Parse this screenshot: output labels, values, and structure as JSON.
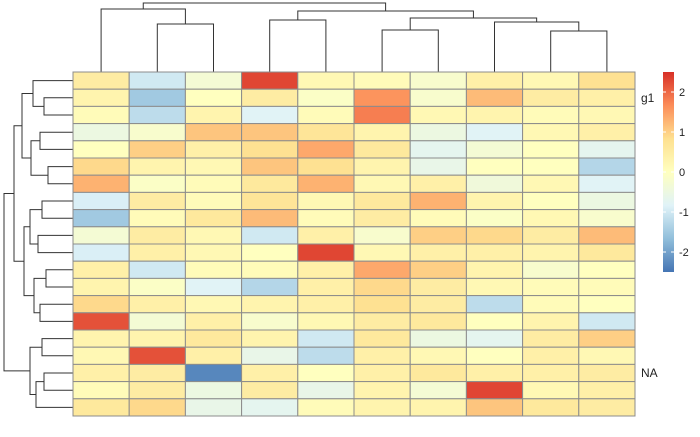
{
  "chart_data": {
    "type": "heatmap",
    "title": "",
    "n_rows": 20,
    "n_cols": 10,
    "row_labels": [
      "",
      "g1",
      "",
      "",
      "",
      "",
      "",
      "",
      "",
      "",
      "",
      "",
      "",
      "",
      "",
      "",
      "",
      "NA",
      "",
      ""
    ],
    "column_labels": [
      "",
      "",
      "",
      "",
      "",
      "",
      "",
      "",
      "",
      ""
    ],
    "values": [
      [
        0.5,
        -1.0,
        -0.3,
        2.3,
        0.2,
        0.1,
        -0.2,
        0.4,
        0.2,
        0.8
      ],
      [
        0.3,
        -1.5,
        0.0,
        0.5,
        -0.1,
        1.6,
        -0.2,
        1.2,
        0.5,
        0.4
      ],
      [
        0.1,
        -1.2,
        0.3,
        -0.8,
        0.1,
        1.8,
        0.2,
        0.3,
        0.1,
        0.2
      ],
      [
        -0.5,
        -0.2,
        1.1,
        1.1,
        0.7,
        0.3,
        -0.5,
        -0.8,
        0.2,
        0.4
      ],
      [
        0.0,
        1.0,
        0.4,
        0.8,
        1.4,
        0.6,
        -0.7,
        -0.3,
        0.0,
        -0.7
      ],
      [
        0.9,
        0.3,
        0.2,
        1.1,
        0.8,
        0.3,
        -0.6,
        0.0,
        0.0,
        -1.3
      ],
      [
        1.3,
        -0.1,
        0.1,
        0.6,
        1.3,
        0.2,
        0.4,
        -0.4,
        0.2,
        -0.8
      ],
      [
        -0.9,
        0.5,
        0.1,
        0.7,
        0.2,
        0.6,
        1.3,
        0.3,
        0.0,
        -0.5
      ],
      [
        -1.5,
        0.1,
        0.6,
        1.2,
        0.1,
        0.5,
        0.1,
        -0.1,
        0.2,
        -0.2
      ],
      [
        -0.3,
        0.5,
        0.2,
        -1.0,
        0.4,
        -0.2,
        1.0,
        0.9,
        0.5,
        1.2
      ],
      [
        -0.9,
        0.4,
        0.2,
        0.0,
        2.3,
        0.2,
        0.4,
        0.4,
        0.3,
        0.6
      ],
      [
        0.4,
        -1.0,
        0.1,
        0.1,
        0.4,
        1.4,
        1.0,
        0.3,
        -0.2,
        0.0
      ],
      [
        0.3,
        -0.1,
        -0.8,
        -1.3,
        0.4,
        0.9,
        0.5,
        0.2,
        0.1,
        0.1
      ],
      [
        0.9,
        0.4,
        0.2,
        0.3,
        0.4,
        0.8,
        0.5,
        -1.2,
        0.1,
        0.0
      ],
      [
        2.2,
        -0.3,
        0.4,
        -0.2,
        0.2,
        0.5,
        0.6,
        0.0,
        0.3,
        -1.0
      ],
      [
        0.3,
        0.3,
        0.6,
        0.3,
        -1.0,
        0.6,
        -0.5,
        -0.7,
        0.5,
        1.0
      ],
      [
        0.2,
        2.2,
        0.4,
        -0.6,
        -1.2,
        0.4,
        0.2,
        0.0,
        0.4,
        0.2
      ],
      [
        0.4,
        0.5,
        -2.3,
        0.4,
        0.0,
        0.4,
        0.6,
        0.4,
        0.4,
        0.5
      ],
      [
        0.1,
        0.5,
        -0.5,
        0.5,
        -0.6,
        0.3,
        -0.3,
        2.3,
        0.2,
        0.4
      ],
      [
        0.6,
        0.9,
        -0.6,
        -0.7,
        0.1,
        0.3,
        0.3,
        1.1,
        0.6,
        0.5
      ]
    ],
    "color_scale": {
      "min": -2.5,
      "max": 2.5,
      "stops": [
        "#4575b4",
        "#91bfdb",
        "#e0f3f8",
        "#ffffbf",
        "#fee090",
        "#fc8d59",
        "#d73027"
      ],
      "ticks": [
        2,
        1,
        0,
        -1,
        -2
      ],
      "tick_labels": [
        "2",
        "1",
        "0",
        "-1",
        "-2"
      ]
    },
    "legend_position": "right",
    "dendrograms": [
      "columns-top",
      "rows-left"
    ]
  }
}
